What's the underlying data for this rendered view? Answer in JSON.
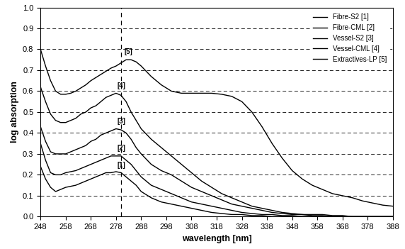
{
  "chart_data": {
    "type": "line",
    "x_label": "wavelength [nm]",
    "y_label": "log absorption",
    "x": [
      248,
      250,
      252,
      254,
      256,
      258,
      260,
      262,
      264,
      266,
      268,
      270,
      272,
      274,
      276,
      278,
      280,
      282,
      284,
      286,
      288,
      292,
      296,
      300,
      304,
      308,
      312,
      316,
      320,
      324,
      328,
      332,
      336,
      340,
      344,
      348,
      352,
      356,
      360,
      364,
      368,
      372,
      376,
      380,
      384,
      388
    ],
    "series": [
      {
        "name": "Fibre-S2 [1]",
        "color": "#000000",
        "values": [
          0.24,
          0.18,
          0.14,
          0.12,
          0.13,
          0.14,
          0.145,
          0.15,
          0.16,
          0.17,
          0.18,
          0.19,
          0.2,
          0.21,
          0.21,
          0.215,
          0.21,
          0.19,
          0.17,
          0.15,
          0.12,
          0.09,
          0.07,
          0.06,
          0.05,
          0.04,
          0.03,
          0.02,
          0.015,
          0.01,
          0.01,
          0.005,
          0.005,
          0.0,
          0.0,
          0.0,
          0.0,
          0.0,
          0.0,
          0.0,
          0.0,
          0.0,
          0.0,
          0.0,
          0.0,
          0.0
        ]
      },
      {
        "name": "Fibre-CML [2]",
        "color": "#000000",
        "values": [
          0.35,
          0.27,
          0.21,
          0.2,
          0.2,
          0.21,
          0.215,
          0.22,
          0.23,
          0.24,
          0.25,
          0.26,
          0.27,
          0.28,
          0.29,
          0.29,
          0.29,
          0.27,
          0.25,
          0.22,
          0.19,
          0.15,
          0.13,
          0.11,
          0.09,
          0.07,
          0.06,
          0.05,
          0.04,
          0.03,
          0.02,
          0.015,
          0.01,
          0.01,
          0.005,
          0.005,
          0.0,
          0.0,
          0.0,
          0.0,
          0.0,
          0.0,
          0.0,
          0.0,
          0.0,
          0.0
        ]
      },
      {
        "name": "Vessel-S2 [3]",
        "color": "#000000",
        "values": [
          0.43,
          0.36,
          0.31,
          0.3,
          0.3,
          0.3,
          0.31,
          0.32,
          0.33,
          0.34,
          0.36,
          0.37,
          0.39,
          0.4,
          0.41,
          0.42,
          0.415,
          0.4,
          0.37,
          0.33,
          0.3,
          0.25,
          0.22,
          0.2,
          0.17,
          0.14,
          0.12,
          0.1,
          0.08,
          0.06,
          0.05,
          0.04,
          0.03,
          0.02,
          0.015,
          0.01,
          0.01,
          0.005,
          0.005,
          0.0,
          0.0,
          0.0,
          0.0,
          0.0,
          0.0,
          0.0
        ]
      },
      {
        "name": "Vessel-CML [4]",
        "color": "#000000",
        "values": [
          0.62,
          0.55,
          0.49,
          0.46,
          0.45,
          0.45,
          0.46,
          0.47,
          0.49,
          0.5,
          0.52,
          0.53,
          0.55,
          0.57,
          0.58,
          0.59,
          0.58,
          0.55,
          0.5,
          0.46,
          0.42,
          0.37,
          0.33,
          0.29,
          0.25,
          0.21,
          0.17,
          0.14,
          0.11,
          0.09,
          0.07,
          0.05,
          0.04,
          0.03,
          0.02,
          0.015,
          0.01,
          0.01,
          0.01,
          0.005,
          0.005,
          0.0,
          0.0,
          0.0,
          0.0,
          0.0
        ]
      },
      {
        "name": "Extractives-LP [5]",
        "color": "#000000",
        "values": [
          0.8,
          0.72,
          0.65,
          0.6,
          0.585,
          0.585,
          0.59,
          0.6,
          0.615,
          0.63,
          0.65,
          0.665,
          0.68,
          0.695,
          0.71,
          0.72,
          0.735,
          0.75,
          0.75,
          0.74,
          0.72,
          0.67,
          0.63,
          0.6,
          0.59,
          0.59,
          0.59,
          0.59,
          0.585,
          0.575,
          0.55,
          0.5,
          0.43,
          0.35,
          0.28,
          0.22,
          0.18,
          0.15,
          0.13,
          0.11,
          0.1,
          0.09,
          0.075,
          0.065,
          0.055,
          0.05
        ]
      }
    ],
    "annotations": [
      {
        "text": "[1]",
        "x": 280,
        "y": 0.23
      },
      {
        "text": "[2]",
        "x": 280,
        "y": 0.31
      },
      {
        "text": "[3]",
        "x": 280,
        "y": 0.44
      },
      {
        "text": "[4]",
        "x": 280,
        "y": 0.61
      },
      {
        "text": "[5]",
        "x": 283,
        "y": 0.77
      }
    ],
    "reference_x": 280,
    "xlim": [
      248,
      388
    ],
    "xticks": [
      248,
      258,
      268,
      278,
      288,
      298,
      308,
      318,
      328,
      338,
      348,
      358,
      368,
      378,
      388
    ],
    "ylim": [
      0,
      1
    ],
    "yticks": [
      {
        "value": 0,
        "label": "0.0"
      },
      0.1,
      0.2,
      0.3,
      0.4,
      0.5,
      0.6,
      0.7,
      0.8,
      0.9,
      {
        "value": 1,
        "label": "1.0"
      }
    ],
    "grid": true,
    "legend": "upper right",
    "line_style": "solid"
  }
}
